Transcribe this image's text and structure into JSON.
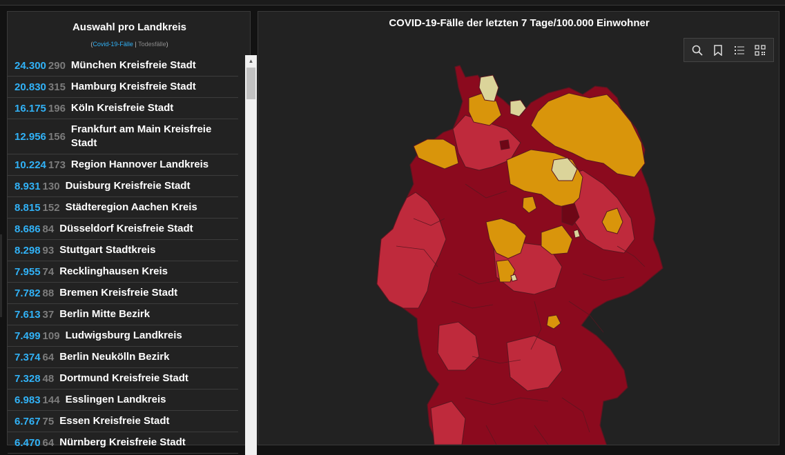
{
  "header": {
    "title": "Auswahl pro Landkreis",
    "subtitle_open": "(",
    "subtitle_cases": "Covid-19-Fälle",
    "subtitle_sep": " | ",
    "subtitle_deaths": "Todesfälle",
    "subtitle_close": ")"
  },
  "rows": [
    {
      "cases": "24.300",
      "deaths": "290",
      "name": "München Kreisfreie Stadt"
    },
    {
      "cases": "20.830",
      "deaths": "315",
      "name": "Hamburg Kreisfreie Stadt"
    },
    {
      "cases": "16.175",
      "deaths": "196",
      "name": "Köln Kreisfreie Stadt"
    },
    {
      "cases": "12.956",
      "deaths": "156",
      "name": "Frankfurt am Main Kreisfreie Stadt"
    },
    {
      "cases": "10.224",
      "deaths": "173",
      "name": "Region Hannover Landkreis"
    },
    {
      "cases": "8.931",
      "deaths": "130",
      "name": "Duisburg Kreisfreie Stadt"
    },
    {
      "cases": "8.815",
      "deaths": "152",
      "name": "Städteregion Aachen Kreis"
    },
    {
      "cases": "8.686",
      "deaths": "84",
      "name": "Düsseldorf Kreisfreie Stadt"
    },
    {
      "cases": "8.298",
      "deaths": "93",
      "name": "Stuttgart Stadtkreis"
    },
    {
      "cases": "7.955",
      "deaths": "74",
      "name": "Recklinghausen Kreis"
    },
    {
      "cases": "7.782",
      "deaths": "88",
      "name": "Bremen Kreisfreie Stadt"
    },
    {
      "cases": "7.613",
      "deaths": "37",
      "name": "Berlin Mitte Bezirk"
    },
    {
      "cases": "7.499",
      "deaths": "109",
      "name": "Ludwigsburg Landkreis"
    },
    {
      "cases": "7.374",
      "deaths": "64",
      "name": "Berlin Neukölln Bezirk"
    },
    {
      "cases": "7.328",
      "deaths": "48",
      "name": "Dortmund Kreisfreie Stadt"
    },
    {
      "cases": "6.983",
      "deaths": "144",
      "name": "Esslingen Landkreis"
    },
    {
      "cases": "6.767",
      "deaths": "75",
      "name": "Essen Kreisfreie Stadt"
    },
    {
      "cases": "6.470",
      "deaths": "64",
      "name": "Nürnberg Kreisfreie Stadt"
    }
  ],
  "map": {
    "title": "COVID-19-Fälle der letzten 7 Tage/100.000 Einwohner",
    "toolbar": [
      "search-icon",
      "bookmark-icon",
      "legend-list-icon",
      "qr-code-icon"
    ],
    "colors": {
      "very_high": "#8b0a1e",
      "high": "#bf2a3c",
      "medium": "#d9950b",
      "low": "#dbd49a",
      "border": "#5a1620"
    }
  }
}
